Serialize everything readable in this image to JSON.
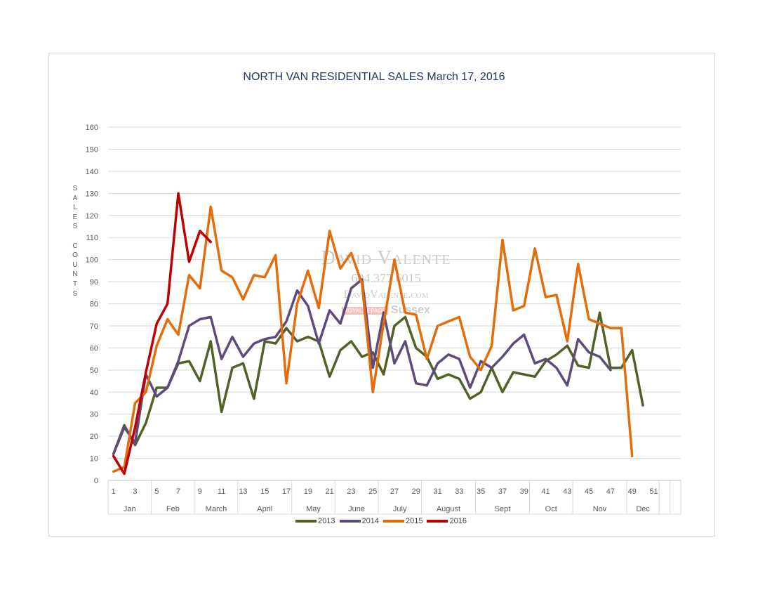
{
  "chart_data": {
    "type": "line",
    "title": "NORTH VAN RESIDENTIAL SALES March 17, 2016",
    "ylabel": "SALES COUNTS",
    "ylim": [
      0,
      160
    ],
    "yticks": [
      0,
      10,
      20,
      30,
      40,
      50,
      60,
      70,
      80,
      90,
      100,
      110,
      120,
      130,
      140,
      150,
      160
    ],
    "xlim": [
      1,
      53
    ],
    "x_tick_labels": [
      "1",
      "3",
      "5",
      "7",
      "9",
      "11",
      "13",
      "15",
      "17",
      "19",
      "21",
      "23",
      "25",
      "27",
      "29",
      "31",
      "33",
      "35",
      "37",
      "39",
      "41",
      "43",
      "45",
      "47",
      "49",
      "51"
    ],
    "month_groups": [
      {
        "label": "Jan",
        "start": 1,
        "end": 4
      },
      {
        "label": "Feb",
        "start": 5,
        "end": 8
      },
      {
        "label": "March",
        "start": 9,
        "end": 12
      },
      {
        "label": "April",
        "start": 13,
        "end": 17
      },
      {
        "label": "May",
        "start": 18,
        "end": 21
      },
      {
        "label": "June",
        "start": 22,
        "end": 25
      },
      {
        "label": "July",
        "start": 26,
        "end": 29
      },
      {
        "label": "August",
        "start": 30,
        "end": 34
      },
      {
        "label": "Sept",
        "start": 35,
        "end": 39
      },
      {
        "label": "Oct",
        "start": 40,
        "end": 43
      },
      {
        "label": "Nov",
        "start": 44,
        "end": 48
      },
      {
        "label": "Dec",
        "start": 49,
        "end": 51
      }
    ],
    "grid": true,
    "legend_position": "bottom",
    "series": [
      {
        "name": "2013",
        "color": "#4f6228",
        "values": [
          12,
          25,
          16,
          26,
          42,
          42,
          53,
          54,
          45,
          63,
          31,
          51,
          53,
          37,
          63,
          62,
          69,
          63,
          65,
          63,
          47,
          59,
          63,
          56,
          58,
          48,
          70,
          74,
          60,
          56,
          46,
          48,
          46,
          37,
          40,
          51,
          40,
          49,
          48,
          47,
          54,
          57,
          61,
          52,
          51,
          76,
          51,
          51,
          59,
          34
        ]
      },
      {
        "name": "2014",
        "color": "#604a7b",
        "values": [
          12,
          24,
          17,
          48,
          38,
          42,
          54,
          70,
          73,
          74,
          55,
          65,
          56,
          62,
          64,
          65,
          72,
          86,
          79,
          62,
          77,
          71,
          87,
          91,
          51,
          76,
          53,
          63,
          44,
          43,
          53,
          57,
          55,
          42,
          54,
          51,
          56,
          62,
          66,
          53,
          55,
          51,
          43,
          64,
          58,
          56,
          50
        ]
      },
      {
        "name": "2015",
        "color": "#e46c0a",
        "values": [
          4,
          6,
          35,
          40,
          61,
          73,
          66,
          93,
          87,
          124,
          95,
          92,
          82,
          93,
          92,
          102,
          44,
          80,
          95,
          78,
          113,
          96,
          103,
          89,
          40,
          71,
          100,
          76,
          75,
          55,
          70,
          72,
          74,
          56,
          50,
          61,
          109,
          77,
          79,
          105,
          83,
          84,
          63,
          98,
          73,
          71,
          69,
          69,
          11
        ]
      },
      {
        "name": "2016",
        "color": "#c00000",
        "values": [
          11,
          3,
          24,
          49,
          71,
          80,
          130,
          99,
          113,
          108
        ]
      }
    ]
  },
  "watermark": {
    "name": "David Valente",
    "phone": "604.377.6015",
    "website": "DavidValente.com",
    "brand": "ROYAL LEPAGE",
    "brand_office": "Sussex"
  }
}
